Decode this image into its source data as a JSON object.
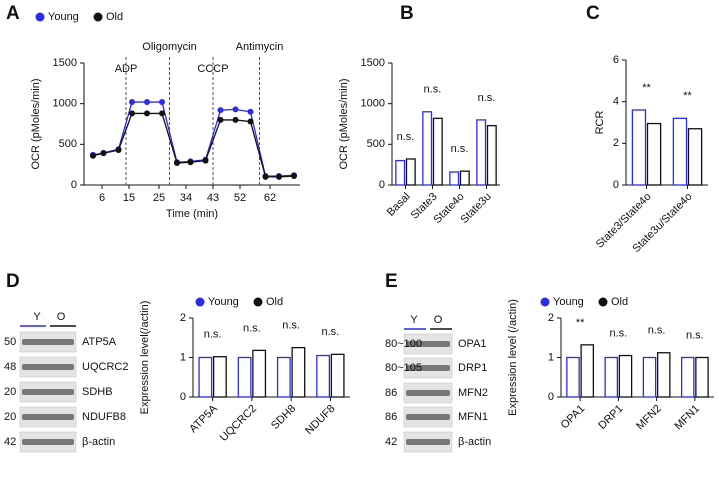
{
  "panels": [
    "A",
    "B",
    "C",
    "D",
    "E"
  ],
  "blots": [
    {
      "lanes": [
        "Y",
        "O"
      ],
      "rows": [
        {
          "size": "50",
          "protein": "ATP5A"
        },
        {
          "size": "48",
          "protein": "UQCRC2"
        },
        {
          "size": "20",
          "protein": "SDHB"
        },
        {
          "size": "20",
          "protein": "NDUFB8"
        },
        {
          "size": "42",
          "protein": "β-actin"
        }
      ]
    },
    {
      "lanes": [
        "Y",
        "O"
      ],
      "rows": [
        {
          "size": "80~100",
          "protein": "OPA1"
        },
        {
          "size": "80~105",
          "protein": "DRP1"
        },
        {
          "size": "86",
          "protein": "MFN2"
        },
        {
          "size": "86",
          "protein": "MFN1"
        },
        {
          "size": "42",
          "protein": "β-actin"
        }
      ]
    }
  ],
  "chart_data": [
    {
      "type": "line",
      "x_label": "Time (min)",
      "y_label": "OCR (pMoles/min)",
      "x": [
        3,
        6.5,
        11.5,
        16,
        21,
        26,
        31,
        35.5,
        40.5,
        45.5,
        50.5,
        55.5,
        60.5,
        65,
        70
      ],
      "series": [
        {
          "name": "Young",
          "color": "#2b2be8",
          "values": [
            370,
            395,
            440,
            1020,
            1020,
            1020,
            280,
            290,
            310,
            920,
            930,
            900,
            110,
            110,
            120
          ]
        },
        {
          "name": "Old",
          "color": "#111111",
          "values": [
            360,
            390,
            430,
            880,
            880,
            880,
            270,
            280,
            300,
            800,
            800,
            780,
            100,
            100,
            110
          ]
        }
      ],
      "xlim": [
        0,
        72
      ],
      "xticks": [
        6,
        15,
        25,
        34,
        43,
        52,
        62
      ],
      "ylim": [
        0,
        1500
      ],
      "yticks": [
        0,
        500,
        1000,
        1500
      ],
      "annotations": [
        {
          "text": "ADP",
          "x": 14
        },
        {
          "text": "Oligomycin",
          "x": 28.5
        },
        {
          "text": "CCCP",
          "x": 43
        },
        {
          "text": "Antimycin",
          "x": 58.5
        }
      ],
      "legend": "top-left"
    },
    {
      "type": "bar",
      "y_label": "OCR (pMoles/min)",
      "categories": [
        "Basal",
        "State3",
        "State4o",
        "State3u"
      ],
      "series": [
        {
          "color": "#2b2be8",
          "values": [
            300,
            900,
            160,
            800
          ]
        },
        {
          "color": "#111111",
          "values": [
            320,
            820,
            170,
            730
          ]
        }
      ],
      "ylim": [
        0,
        1500
      ],
      "yticks": [
        0,
        500,
        1000,
        1500
      ],
      "annotations": [
        "n.s.",
        "n.s.",
        "n.s.",
        "n.s."
      ]
    },
    {
      "type": "bar",
      "y_label": "RCR",
      "categories": [
        "State3/State4o",
        "State3u/State4o"
      ],
      "series": [
        {
          "color": "#2b2be8",
          "values": [
            3.6,
            3.2
          ]
        },
        {
          "color": "#111111",
          "values": [
            2.95,
            2.7
          ]
        }
      ],
      "ylim": [
        0,
        6
      ],
      "yticks": [
        0,
        2,
        4,
        6
      ],
      "annotations": [
        "**",
        "**"
      ]
    },
    {
      "type": "bar",
      "y_label": "Expression level(/actin)",
      "categories": [
        "ATP5A",
        "UQCRC2",
        "SDH8",
        "NDUF8"
      ],
      "series": [
        {
          "name": "Young",
          "color": "#2b2be8",
          "values": [
            1.0,
            1.0,
            1.0,
            1.05
          ]
        },
        {
          "name": "Old",
          "color": "#111111",
          "values": [
            1.02,
            1.18,
            1.25,
            1.08
          ]
        }
      ],
      "ylim": [
        0,
        2
      ],
      "yticks": [
        0,
        1,
        2
      ],
      "annotations": [
        "n.s.",
        "n.s.",
        "n.s.",
        "n.s."
      ],
      "legend": "top"
    },
    {
      "type": "bar",
      "y_label": "Expression level (/actin)",
      "categories": [
        "OPA1",
        "DRP1",
        "MFN2",
        "MFN1"
      ],
      "series": [
        {
          "name": "Young",
          "color": "#2b2be8",
          "values": [
            1.0,
            1.0,
            1.0,
            1.0
          ]
        },
        {
          "name": "Old",
          "color": "#111111",
          "values": [
            1.32,
            1.05,
            1.12,
            1.0
          ]
        }
      ],
      "ylim": [
        0,
        2
      ],
      "yticks": [
        0,
        1,
        2
      ],
      "annotations": [
        "**",
        "n.s.",
        "n.s.",
        "n.s."
      ],
      "legend": "top"
    }
  ]
}
